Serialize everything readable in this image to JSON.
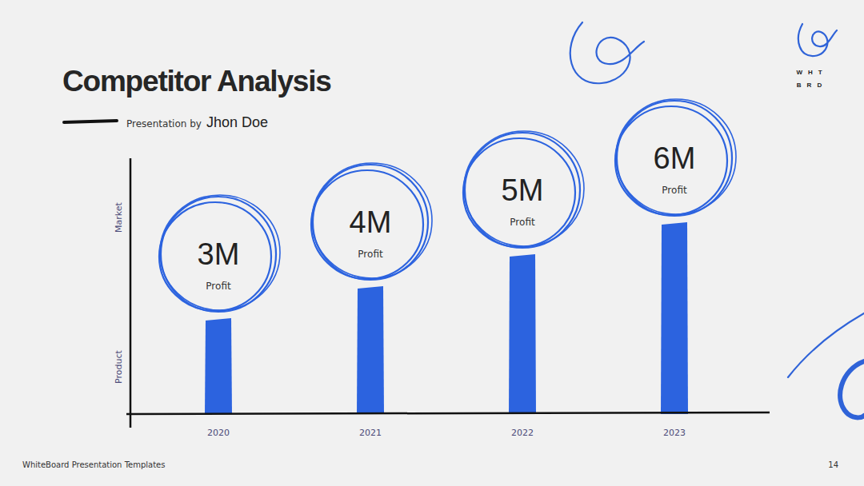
{
  "page": {
    "title": "Competitor Analysis",
    "subtitle_prefix": "Presentation by",
    "author": "Jhon Doe",
    "logo": [
      "WHT",
      "BRD"
    ],
    "footer": "WhiteBoard Presentation Templates",
    "page_number": "14"
  },
  "chart_data": {
    "type": "bar",
    "categories": [
      "2020",
      "2021",
      "2022",
      "2023"
    ],
    "values": [
      3,
      4,
      5,
      6
    ],
    "value_labels": [
      "3M",
      "4M",
      "5M",
      "6M"
    ],
    "value_caption": "Profit",
    "annotations": [
      "Market",
      "Product"
    ],
    "color": "#2c63df",
    "ylim": [
      0,
      8
    ],
    "data_labels": true,
    "tick_labels": "x"
  }
}
